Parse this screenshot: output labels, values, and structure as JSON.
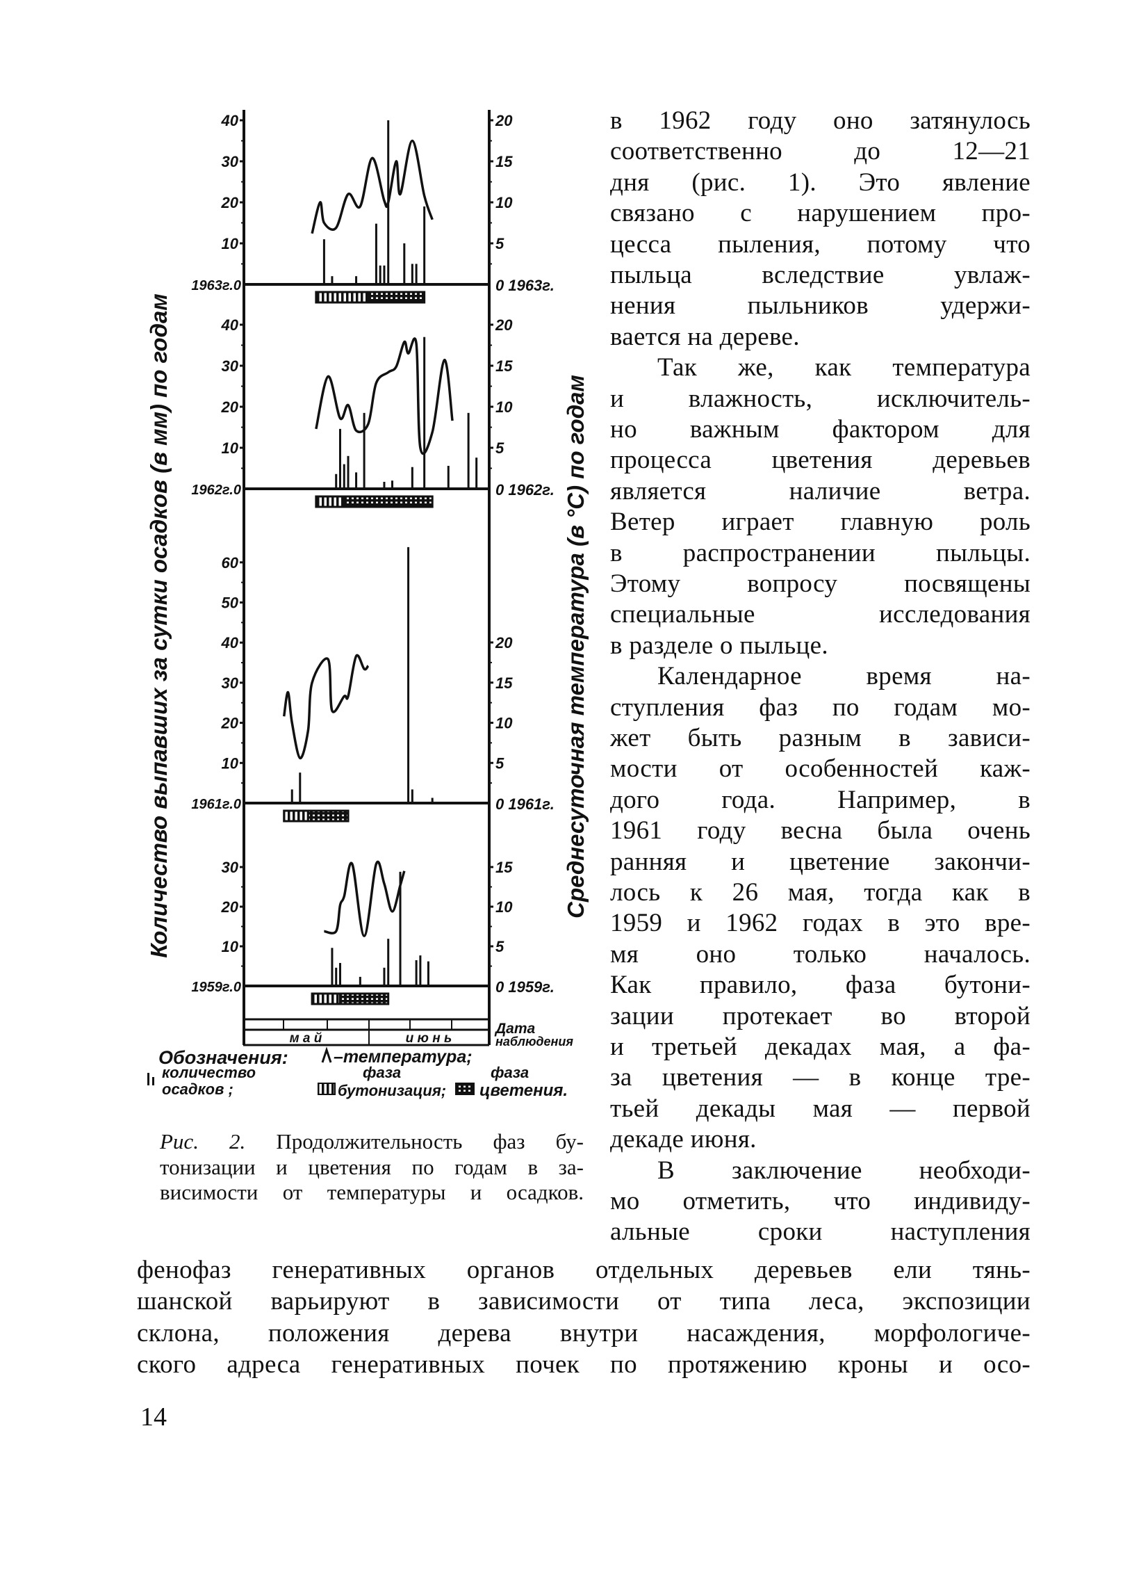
{
  "right_column": [
    {
      "indent": false,
      "lines": [
        "в 1962 году оно затянулось",
        "соответственно до 12—21",
        "дня (рис. 1). Это явление",
        "связано с нарушением про-",
        "цесса пыления, потому что",
        "пыльца вследствие увлаж-",
        "нения пыльников удержи-",
        "вается на дереве."
      ]
    },
    {
      "indent": true,
      "lines": [
        "Так же, как температура",
        "и влажность, исключитель-",
        "но важным фактором для",
        "процесса цветения деревьев",
        "является наличие ветра.",
        "Ветер играет главную роль",
        "в распространении пыльцы.",
        "Этому вопросу посвящены",
        "специальные исследования",
        "в разделе о пыльце."
      ]
    },
    {
      "indent": true,
      "lines": [
        "Календарное время на-",
        "ступления фаз по годам мо-",
        "жет быть разным в зависи-",
        "мости от особенностей каж-",
        "дого года. Например, в",
        "1961 году весна была очень",
        "ранняя и цветение закончи-",
        "лось к 26 мая, тогда как в",
        "1959 и 1962 годах в это вре-",
        "мя оно только началось.",
        "Как правило, фаза бутони-",
        "зации протекает во второй",
        "и третьей декадах мая, а фа-",
        "за цветения — в конце тре-",
        "тьей декады мая — первой",
        "декаде июня."
      ]
    },
    {
      "indent": true,
      "continues": true,
      "lines": [
        "В заключение необходи-",
        "мо отметить, что индивиду-",
        "альные сроки наступления"
      ]
    }
  ],
  "full_width_lines": [
    "фенофаз генеративных органов отдельных деревьев ели тянь-",
    "шанской варьируют в зависимости от типа леса, экспозиции",
    "склона, положения дерева внутри насаждения, морфологиче-",
    "ского адреса генеративных почек по протяжению кроны и осо-"
  ],
  "caption": {
    "label": "Рис. 2.",
    "lines": [
      "Продолжительность фаз бу-",
      "тонизации и цветения по годам в за-",
      "висимости от температуры и осадков."
    ]
  },
  "page_number": "14",
  "chart_data": {
    "type": "line",
    "ylabel_left": "Количество выпавших за сутки осадков (в мм) по годам",
    "ylabel_right": "Среднесуточная температура (в °С) по годам",
    "xlabel": "Дата наблюдения",
    "x_months": [
      "м а й",
      "и ю н ь"
    ],
    "x_range": [
      "01.05",
      "30.06"
    ],
    "legend": {
      "title": "Обозначения:",
      "temperature": "–температура;",
      "precip_1": "количество",
      "precip_2": "осадков ;",
      "bud_1": "фаза",
      "bud_2": "бутонизация;",
      "bloom_1": "фаза",
      "bloom_2": "цветения."
    },
    "panels": [
      {
        "year": "1963",
        "left_label": "1963г.0",
        "right_label": "0  1963г.",
        "left_ticks": [
          40,
          30,
          20,
          10
        ],
        "right_ticks": [
          20,
          15,
          10,
          5
        ],
        "temperature": [
          [
            "18.05",
            6.2
          ],
          [
            "20.05",
            10
          ],
          [
            "21.05",
            7.5
          ],
          [
            "24.05",
            6.9
          ],
          [
            "27.05",
            11
          ],
          [
            "30.05",
            9.5
          ],
          [
            "02.06",
            15.4
          ],
          [
            "05.06",
            10.2
          ],
          [
            "06.06",
            10
          ],
          [
            "08.06",
            15
          ],
          [
            "09.06",
            11
          ],
          [
            "12.06",
            17.5
          ],
          [
            "15.06",
            10.8
          ],
          [
            "17.06",
            7.9
          ]
        ],
        "precipitation": [
          [
            "21.05",
            11
          ],
          [
            "23.05",
            2
          ],
          [
            "29.05",
            2
          ],
          [
            "03.06",
            14.8
          ],
          [
            "04.06",
            4.6
          ],
          [
            "05.06",
            4.6
          ],
          [
            "06.06",
            40
          ],
          [
            "10.06",
            10
          ],
          [
            "12.06",
            5
          ],
          [
            "13.06",
            5
          ],
          [
            "15.06",
            19
          ]
        ],
        "budding": [
          "19.05",
          "01.06"
        ],
        "flowering": [
          "01.06",
          "15.06"
        ]
      },
      {
        "year": "1962",
        "left_label": "1962г.0",
        "right_label": "0 1962г.",
        "left_ticks": [
          40,
          30,
          20,
          10
        ],
        "right_ticks": [
          20,
          15,
          10,
          5
        ],
        "temperature": [
          [
            "19.05",
            7.3
          ],
          [
            "22.05",
            13.7
          ],
          [
            "25.05",
            8.6
          ],
          [
            "27.05",
            10.2
          ],
          [
            "29.05",
            7.1
          ],
          [
            "01.06",
            7.9
          ],
          [
            "03.06",
            12.9
          ],
          [
            "06.06",
            14.2
          ],
          [
            "08.06",
            14.9
          ],
          [
            "10.06",
            17.9
          ],
          [
            "11.06",
            16.5
          ],
          [
            "13.06",
            17.7
          ],
          [
            "14.06",
            5
          ],
          [
            "17.06",
            6.9
          ],
          [
            "20.06",
            15.7
          ],
          [
            "22.06",
            8.3
          ]
        ],
        "precipitation": [
          [
            "24.05",
            3.6
          ],
          [
            "25.05",
            14.6
          ],
          [
            "26.05",
            6
          ],
          [
            "27.05",
            8
          ],
          [
            "29.05",
            4
          ],
          [
            "31.05",
            18.5
          ],
          [
            "05.06",
            1.7
          ],
          [
            "07.06",
            2
          ],
          [
            "12.06",
            5.3
          ],
          [
            "15.06",
            37
          ],
          [
            "21.06",
            5.6
          ],
          [
            "26.06",
            18.5
          ],
          [
            "28.06",
            7.6
          ]
        ],
        "budding": [
          "19.05",
          "26.05"
        ],
        "flowering": [
          "26.05",
          "17.06"
        ]
      },
      {
        "year": "1961",
        "left_label": "1961г.0",
        "right_label": "0 1961г.",
        "left_ticks": [
          60,
          50,
          40,
          30,
          20,
          10
        ],
        "right_ticks": [
          20,
          15,
          10,
          5
        ],
        "temperature": [
          [
            "11.05",
            10.8
          ],
          [
            "12.05",
            13.8
          ],
          [
            "13.05",
            10
          ],
          [
            "15.05",
            5.6
          ],
          [
            "17.05",
            9
          ],
          [
            "18.05",
            15
          ],
          [
            "22.05",
            17.9
          ],
          [
            "23.05",
            11.5
          ],
          [
            "26.05",
            13.3
          ],
          [
            "27.05",
            13.3
          ],
          [
            "29.05",
            18.3
          ],
          [
            "31.05",
            16.7
          ],
          [
            "01.06",
            17.1
          ]
        ],
        "precipitation": [
          [
            "13.05",
            3.4
          ],
          [
            "15.05",
            7.6
          ],
          [
            "11.06",
            63.8
          ],
          [
            "12.06",
            3.4
          ],
          [
            "17.06",
            1.3
          ]
        ],
        "budding": [
          "11.05",
          "17.05"
        ],
        "flowering": [
          "17.05",
          "27.05"
        ]
      },
      {
        "year": "1959",
        "left_label": "1959г.0",
        "right_label": "0 1959г.",
        "left_ticks": [
          30,
          20,
          10
        ],
        "right_ticks": [
          15,
          10,
          5
        ],
        "temperature": [
          [
            "21.05",
            6.9
          ],
          [
            "24.05",
            6.9
          ],
          [
            "25.05",
            10.2
          ],
          [
            "26.05",
            11.3
          ],
          [
            "28.05",
            15.4
          ],
          [
            "31.05",
            6.3
          ],
          [
            "03.06",
            15.4
          ],
          [
            "05.06",
            12.9
          ],
          [
            "07.06",
            9.4
          ],
          [
            "09.06",
            12.7
          ],
          [
            "10.06",
            14.5
          ]
        ],
        "precipitation": [
          [
            "23.05",
            9.6
          ],
          [
            "24.05",
            4.6
          ],
          [
            "25.05",
            5.8
          ],
          [
            "30.05",
            2.3
          ],
          [
            "05.06",
            4.6
          ],
          [
            "06.06",
            11.9
          ],
          [
            "09.06",
            28.8
          ],
          [
            "13.06",
            6.5
          ],
          [
            "14.06",
            7.7
          ],
          [
            "16.06",
            6.2
          ]
        ],
        "budding": [
          "18.05",
          "25.05"
        ],
        "flowering": [
          "25.05",
          "06.06"
        ]
      }
    ]
  }
}
